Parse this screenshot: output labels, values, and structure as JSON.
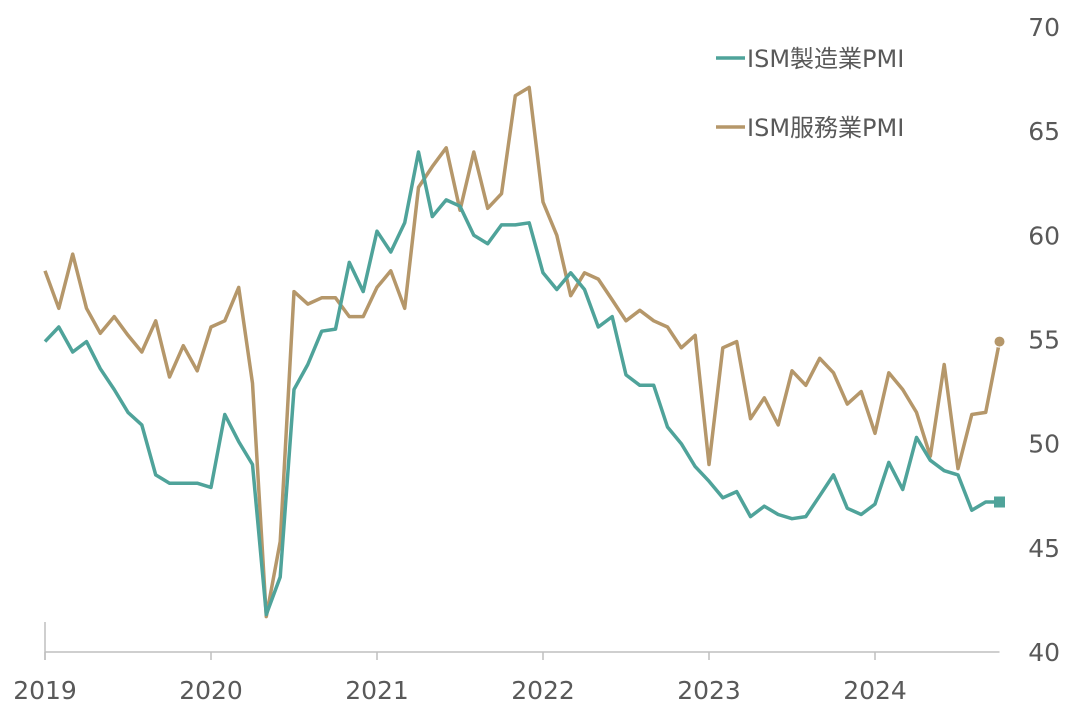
{
  "chart_data": {
    "type": "line",
    "title": "",
    "xlabel": "",
    "ylabel": "",
    "ylim": [
      40,
      70
    ],
    "xlim": [
      2019,
      2024.75
    ],
    "y_ticks": [
      "40",
      "45",
      "50",
      "55",
      "60",
      "65",
      "70"
    ],
    "x_ticks": [
      "2019",
      "2020",
      "2021",
      "2022",
      "2023",
      "2024"
    ],
    "y_axis_side": "right",
    "legend_position": "top-right",
    "x_start": 2019,
    "x_step_months": 1,
    "series": [
      {
        "name": "ISM製造業PMI",
        "color": "#4fa39a",
        "end_marker": "square",
        "values": [
          54.9,
          55.6,
          54.4,
          54.9,
          53.6,
          52.6,
          51.5,
          50.9,
          48.5,
          48.1,
          48.1,
          48.1,
          47.9,
          51.4,
          50.1,
          49.0,
          41.8,
          43.6,
          52.6,
          53.8,
          55.4,
          55.5,
          58.7,
          57.3,
          60.2,
          59.2,
          60.6,
          64.0,
          60.9,
          61.7,
          61.4,
          60.0,
          59.6,
          60.5,
          60.5,
          60.6,
          58.2,
          57.4,
          58.2,
          57.4,
          55.6,
          56.1,
          53.3,
          52.8,
          52.8,
          50.8,
          50.0,
          48.9,
          48.2,
          47.4,
          47.7,
          46.5,
          47.0,
          46.6,
          46.4,
          46.5,
          47.5,
          48.5,
          46.9,
          46.6,
          47.1,
          49.1,
          47.8,
          50.3,
          49.2,
          48.7,
          48.5,
          46.8,
          47.2,
          47.2
        ]
      },
      {
        "name": "ISM服務業PMI",
        "color": "#b5976a",
        "end_marker": "circle",
        "values": [
          58.3,
          56.5,
          59.1,
          56.5,
          55.3,
          56.1,
          55.2,
          54.4,
          55.9,
          53.2,
          54.7,
          53.5,
          55.6,
          55.9,
          57.5,
          52.9,
          41.7,
          45.3,
          57.3,
          56.7,
          57.0,
          57.0,
          56.1,
          56.1,
          57.5,
          58.3,
          56.5,
          62.3,
          63.3,
          64.2,
          61.2,
          64.0,
          61.3,
          62.0,
          66.7,
          67.1,
          61.6,
          60.0,
          57.1,
          58.2,
          57.9,
          56.9,
          55.9,
          56.4,
          55.9,
          55.6,
          54.6,
          55.2,
          49.0,
          54.6,
          54.9,
          51.2,
          52.2,
          50.9,
          53.5,
          52.8,
          54.1,
          53.4,
          51.9,
          52.5,
          50.5,
          53.4,
          52.6,
          51.5,
          49.4,
          53.8,
          48.8,
          51.4,
          51.5,
          54.9
        ]
      }
    ]
  }
}
